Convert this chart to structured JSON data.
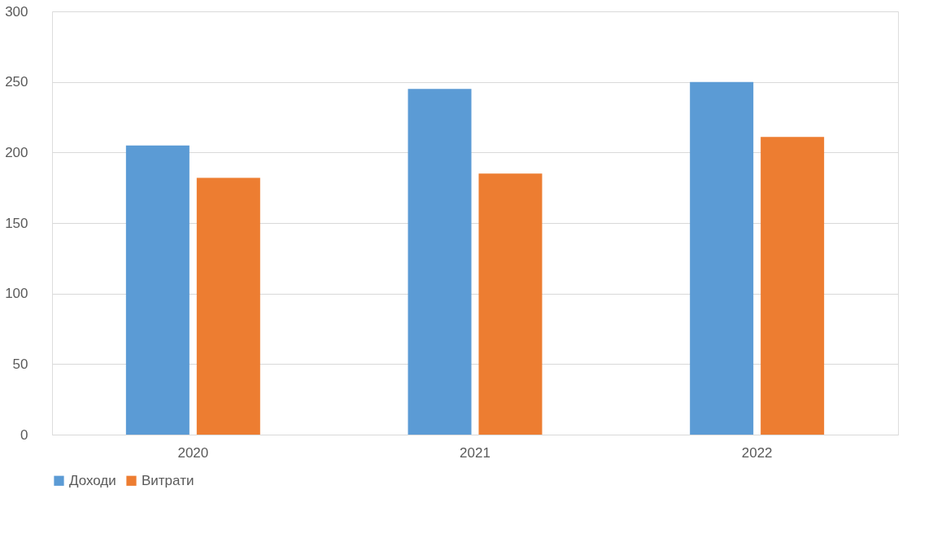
{
  "chart_data": {
    "type": "bar",
    "categories": [
      "2020",
      "2021",
      "2022"
    ],
    "series": [
      {
        "name": "Доходи",
        "color": "#5b9bd5",
        "values": [
          205,
          245,
          250
        ]
      },
      {
        "name": "Витрати",
        "color": "#ed7d31",
        "values": [
          182,
          185,
          211
        ]
      }
    ],
    "ylim": [
      0,
      300
    ],
    "yticks": [
      0,
      50,
      100,
      150,
      200,
      250,
      300
    ],
    "grid": "y",
    "legend": "bottom"
  }
}
